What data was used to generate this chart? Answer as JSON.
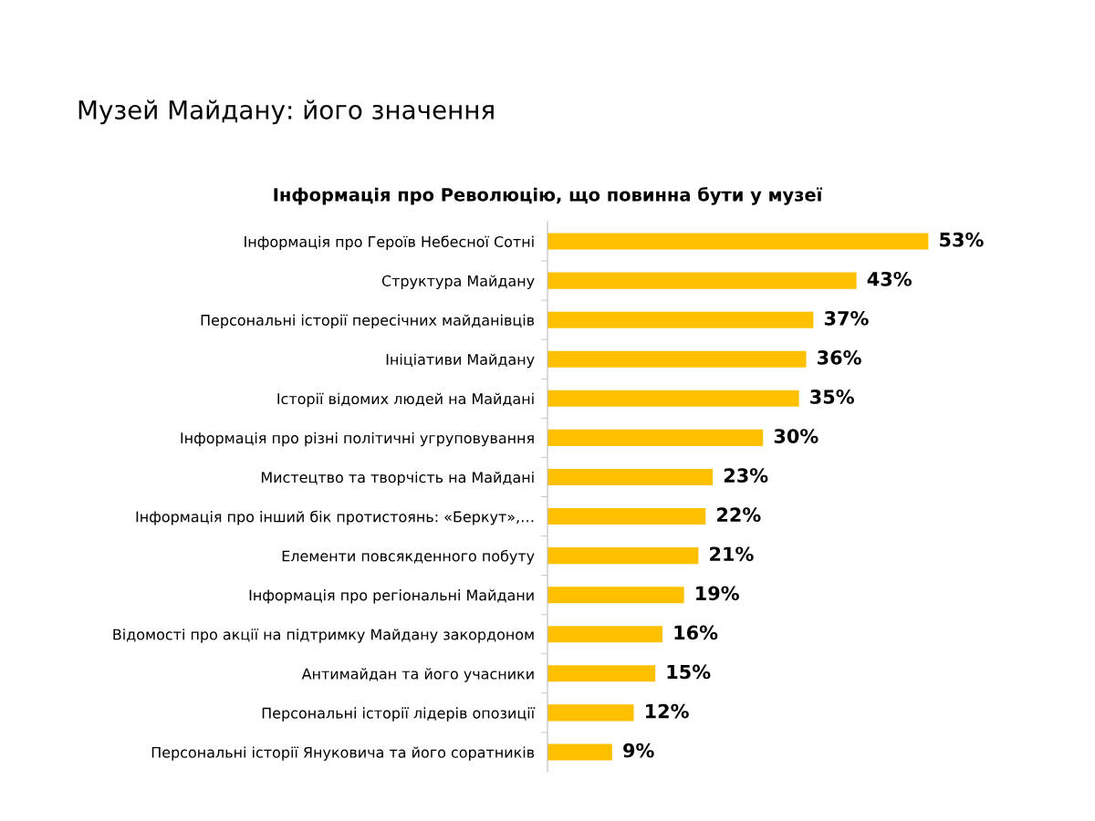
{
  "chart_data": {
    "type": "bar",
    "orientation": "horizontal",
    "title": "Музей Майдану: його значення",
    "subtitle": "Інформація про Революцію, що повинна бути у музеї",
    "categories": [
      "Інформація про Героїв Небесної Сотні",
      "Структура Майдану",
      "Персональні історії пересічних майданівців",
      "Ініціативи Майдану",
      "Історії відомих людей на Майдані",
      "Інформація про різні політичні угруповування",
      "Мистецтво та творчість на Майдані",
      "Інформація про інший бік протистоянь: «Беркут»,…",
      "Елементи повсякденного побуту",
      "Інформація про регіональні Майдани",
      "Відомості про акції на підтримку Майдану закордоном",
      "Антимайдан та його учасники",
      "Персональні історії лідерів опозиції",
      "Персональні історії Януковича та його соратників"
    ],
    "values": [
      53,
      43,
      37,
      36,
      35,
      30,
      23,
      22,
      21,
      19,
      16,
      15,
      12,
      9
    ],
    "value_labels": [
      "53%",
      "43%",
      "37%",
      "36%",
      "35%",
      "30%",
      "23%",
      "22%",
      "21%",
      "19%",
      "16%",
      "15%",
      "12%",
      "9%"
    ],
    "color": "#ffc000",
    "tick_labels": "y",
    "grid": false,
    "legend": false
  }
}
